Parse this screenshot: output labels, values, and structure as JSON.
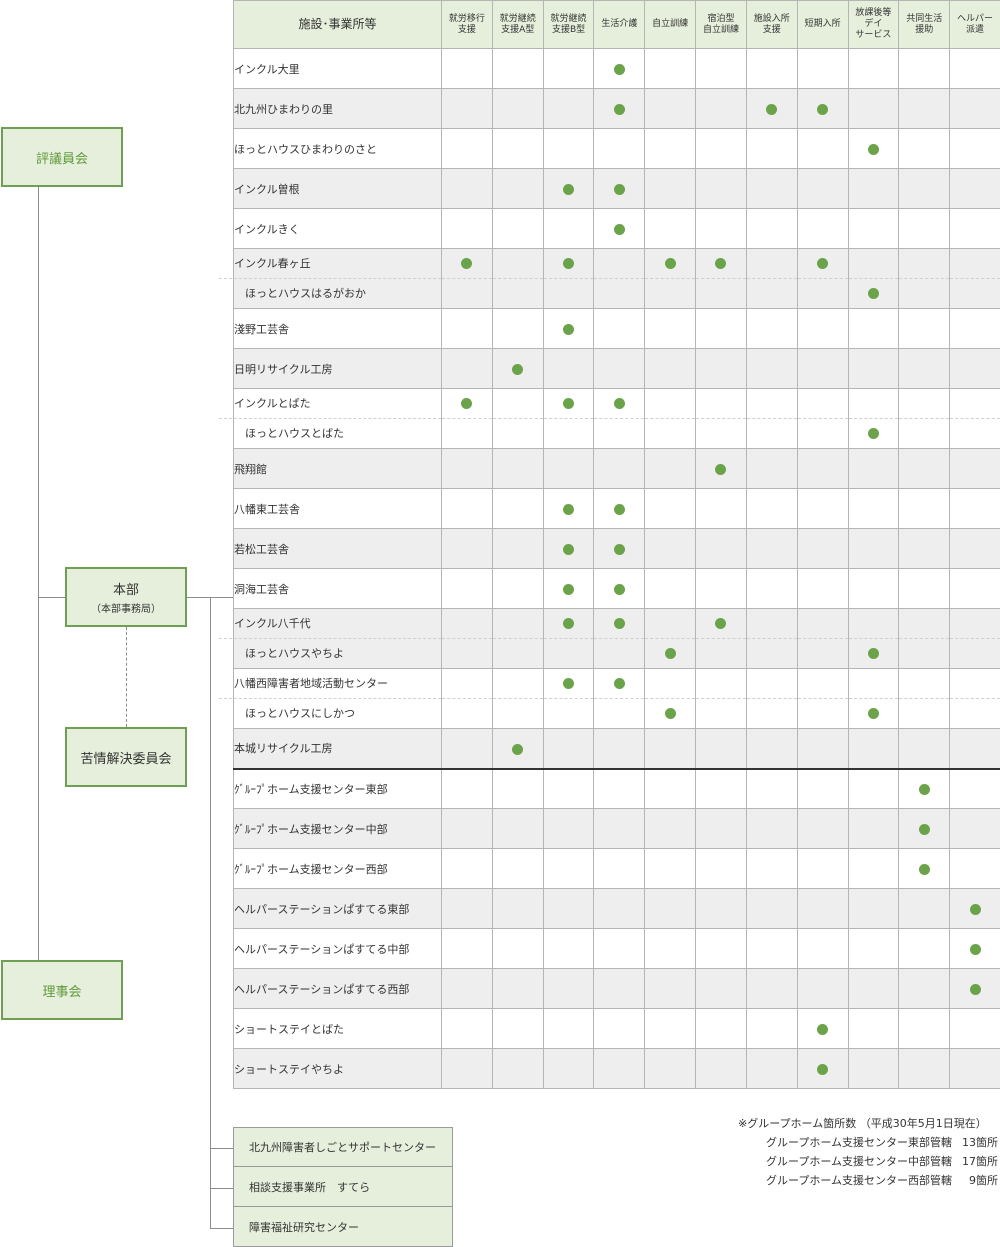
{
  "org": {
    "council": "評議員会",
    "board": "理事会",
    "hq": "本部",
    "hq_sub": "（本部事務局）",
    "complaints": "苦情解決委員会"
  },
  "table": {
    "name_header": "施設･事業所等",
    "columns": [
      [
        "就労移行",
        "支援"
      ],
      [
        "就労継続",
        "支援A型"
      ],
      [
        "就労継続",
        "支援B型"
      ],
      [
        "生活介護"
      ],
      [
        "自立訓練"
      ],
      [
        "宿泊型",
        "自立訓練"
      ],
      [
        "施設入所",
        "支援"
      ],
      [
        "短期入所"
      ],
      [
        "放課後等",
        "デイ",
        "サービス"
      ],
      [
        "共同生活",
        "援助"
      ],
      [
        "ヘルパー",
        "派遣"
      ]
    ],
    "rows": [
      {
        "names": [
          "インクル大里"
        ],
        "marks": [
          [
            3
          ]
        ]
      },
      {
        "names": [
          "北九州ひまわりの里"
        ],
        "marks": [
          [
            3,
            6,
            7
          ]
        ]
      },
      {
        "names": [
          "ほっとハウスひまわりのさと"
        ],
        "marks": [
          [
            8
          ]
        ]
      },
      {
        "names": [
          "インクル曽根"
        ],
        "marks": [
          [
            2,
            3
          ]
        ]
      },
      {
        "names": [
          "インクルきく"
        ],
        "marks": [
          [
            3
          ]
        ]
      },
      {
        "names": [
          "インクル春ヶ丘",
          "ほっとハウスはるがおか"
        ],
        "marks": [
          [
            0,
            2,
            4,
            5,
            7
          ],
          [
            8
          ]
        ]
      },
      {
        "names": [
          "淺野工芸舎"
        ],
        "marks": [
          [
            2
          ]
        ]
      },
      {
        "names": [
          "日明リサイクル工房"
        ],
        "marks": [
          [
            1
          ]
        ]
      },
      {
        "names": [
          "インクルとばた",
          "ほっとハウスとばた"
        ],
        "marks": [
          [
            0,
            2,
            3
          ],
          [
            8
          ]
        ]
      },
      {
        "names": [
          "飛翔館"
        ],
        "marks": [
          [
            5
          ]
        ]
      },
      {
        "names": [
          "八幡東工芸舎"
        ],
        "marks": [
          [
            2,
            3
          ]
        ]
      },
      {
        "names": [
          "若松工芸舎"
        ],
        "marks": [
          [
            2,
            3
          ]
        ]
      },
      {
        "names": [
          "洞海工芸舎"
        ],
        "marks": [
          [
            2,
            3
          ]
        ]
      },
      {
        "names": [
          "インクル八千代",
          "ほっとハウスやちよ"
        ],
        "marks": [
          [
            2,
            3,
            5
          ],
          [
            4,
            8
          ]
        ]
      },
      {
        "names": [
          "八幡西障害者地域活動センター",
          "ほっとハウスにしかつ"
        ],
        "marks": [
          [
            2,
            3
          ],
          [
            4,
            8
          ]
        ]
      },
      {
        "names": [
          "本城リサイクル工房"
        ],
        "marks": [
          [
            1
          ]
        ]
      },
      {
        "names": [
          "ｸﾞﾙｰﾌﾟホーム支援センター東部"
        ],
        "marks": [
          [
            9
          ]
        ],
        "separator": true
      },
      {
        "names": [
          "ｸﾞﾙｰﾌﾟホーム支援センター中部"
        ],
        "marks": [
          [
            9
          ]
        ]
      },
      {
        "names": [
          "ｸﾞﾙｰﾌﾟホーム支援センター西部"
        ],
        "marks": [
          [
            9
          ]
        ]
      },
      {
        "names": [
          "ヘルパーステーションぱすてる東部"
        ],
        "marks": [
          [
            10
          ]
        ]
      },
      {
        "names": [
          "ヘルパーステーションぱすてる中部"
        ],
        "marks": [
          [
            10
          ]
        ]
      },
      {
        "names": [
          "ヘルパーステーションぱすてる西部"
        ],
        "marks": [
          [
            10
          ]
        ]
      },
      {
        "names": [
          "ショートステイとばた"
        ],
        "marks": [
          [
            7
          ]
        ]
      },
      {
        "names": [
          "ショートステイやちよ"
        ],
        "marks": [
          [
            7
          ]
        ]
      }
    ]
  },
  "other_units": [
    "北九州障害者しごとサポートセンター",
    "相談支援事業所　すてら",
    "障害福祉研究センター"
  ],
  "notes": {
    "title": "※グループホーム箇所数 （平成30年5月1日現在）",
    "items": [
      {
        "label": "グループホーム支援センター東部管轄",
        "count": "13箇所"
      },
      {
        "label": "グループホーム支援センター中部管轄",
        "count": "17箇所"
      },
      {
        "label": "グループホーム支援センター西部管轄",
        "count": "9箇所"
      }
    ]
  },
  "colors": {
    "accent": "#6ba34a",
    "box_fill": "#e6efdc",
    "box_border": "#6f9f52",
    "row_alt": "#eeeeee"
  }
}
